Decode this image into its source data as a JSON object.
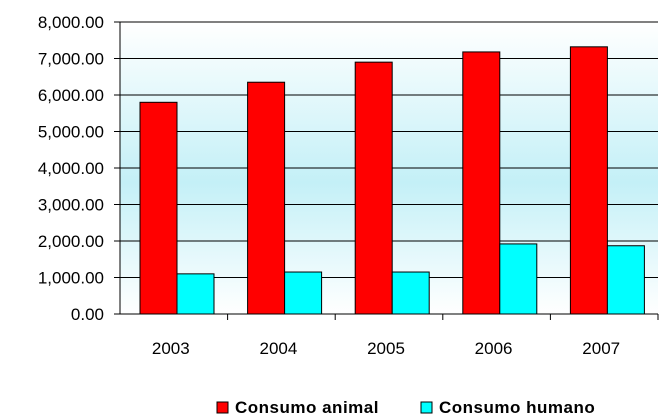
{
  "chart_data": {
    "type": "bar",
    "title": "",
    "xlabel": "",
    "ylabel": "",
    "categories": [
      "2003",
      "2004",
      "2005",
      "2006",
      "2007"
    ],
    "series": [
      {
        "name": "Consumo animal",
        "color": "#ff0000",
        "values": [
          5800,
          6350,
          6900,
          7180,
          7320
        ]
      },
      {
        "name": "Consumo humano",
        "color": "#00ffff",
        "values": [
          1100,
          1150,
          1150,
          1920,
          1870
        ]
      }
    ],
    "ylim": [
      0,
      8000
    ],
    "yticks": [
      "0.00",
      "1,000.00",
      "2,000.00",
      "3,000.00",
      "4,000.00",
      "5,000.00",
      "6,000.00",
      "7,000.00",
      "8,000.00"
    ],
    "grid": true,
    "legend": "bottom",
    "plot_background": "gradient white-to-lightcyan"
  }
}
